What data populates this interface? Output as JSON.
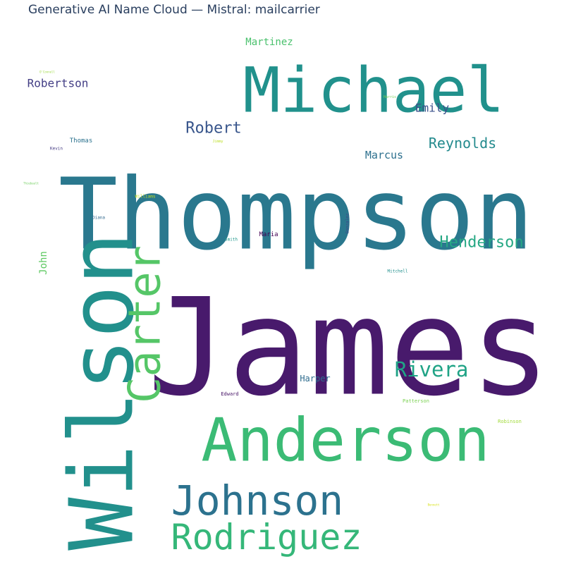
{
  "chart_data": {
    "type": "word_cloud",
    "title": "Generative AI Name Cloud — Mistral: mailcarrier",
    "words": [
      {
        "text": "James",
        "color": "#481a6c"
      },
      {
        "text": "Thompson",
        "color": "#2a788e"
      },
      {
        "text": "Wilson",
        "color": "#22908c"
      },
      {
        "text": "Michael",
        "color": "#21918c"
      },
      {
        "text": "Anderson",
        "color": "#3bbb75"
      },
      {
        "text": "Carter",
        "color": "#55c667"
      },
      {
        "text": "Johnson",
        "color": "#2c728e"
      },
      {
        "text": "Rodriguez",
        "color": "#35b779"
      },
      {
        "text": "Rivera",
        "color": "#20a386"
      },
      {
        "text": "Henderson",
        "color": "#26a884"
      },
      {
        "text": "Robert",
        "color": "#39568c"
      },
      {
        "text": "Reynolds",
        "color": "#238a8d"
      },
      {
        "text": "Robertson",
        "color": "#433e85"
      },
      {
        "text": "Emily",
        "color": "#3b518b"
      },
      {
        "text": "Marcus",
        "color": "#2d708e"
      },
      {
        "text": "Martinez",
        "color": "#4ac16d"
      },
      {
        "text": "John",
        "color": "#5ec962"
      },
      {
        "text": "Harper",
        "color": "#2f6c8e"
      },
      {
        "text": "Maria",
        "color": "#440154"
      },
      {
        "text": "Thomas",
        "color": "#2c728e"
      },
      {
        "text": "Edward",
        "color": "#481668"
      },
      {
        "text": "Patterson",
        "color": "#7ad151"
      },
      {
        "text": "Robinson",
        "color": "#a0da39"
      },
      {
        "text": "Mitchell",
        "color": "#21908d"
      },
      {
        "text": "Smith",
        "color": "#1f988b"
      },
      {
        "text": "Diana",
        "color": "#31688e"
      },
      {
        "text": "Kevin",
        "color": "#443a83"
      },
      {
        "text": "Gonzalez",
        "color": "#3e4989"
      },
      {
        "text": "Williams",
        "color": "#c2df23"
      },
      {
        "text": "Jimmy",
        "color": "#bddf26"
      },
      {
        "text": "Harris",
        "color": "#75d054"
      },
      {
        "text": "Thiebault",
        "color": "#6ccd5a"
      },
      {
        "text": "O'Connell",
        "color": "#9bd93c"
      },
      {
        "text": "Bennett",
        "color": "#d8e219"
      }
    ]
  }
}
